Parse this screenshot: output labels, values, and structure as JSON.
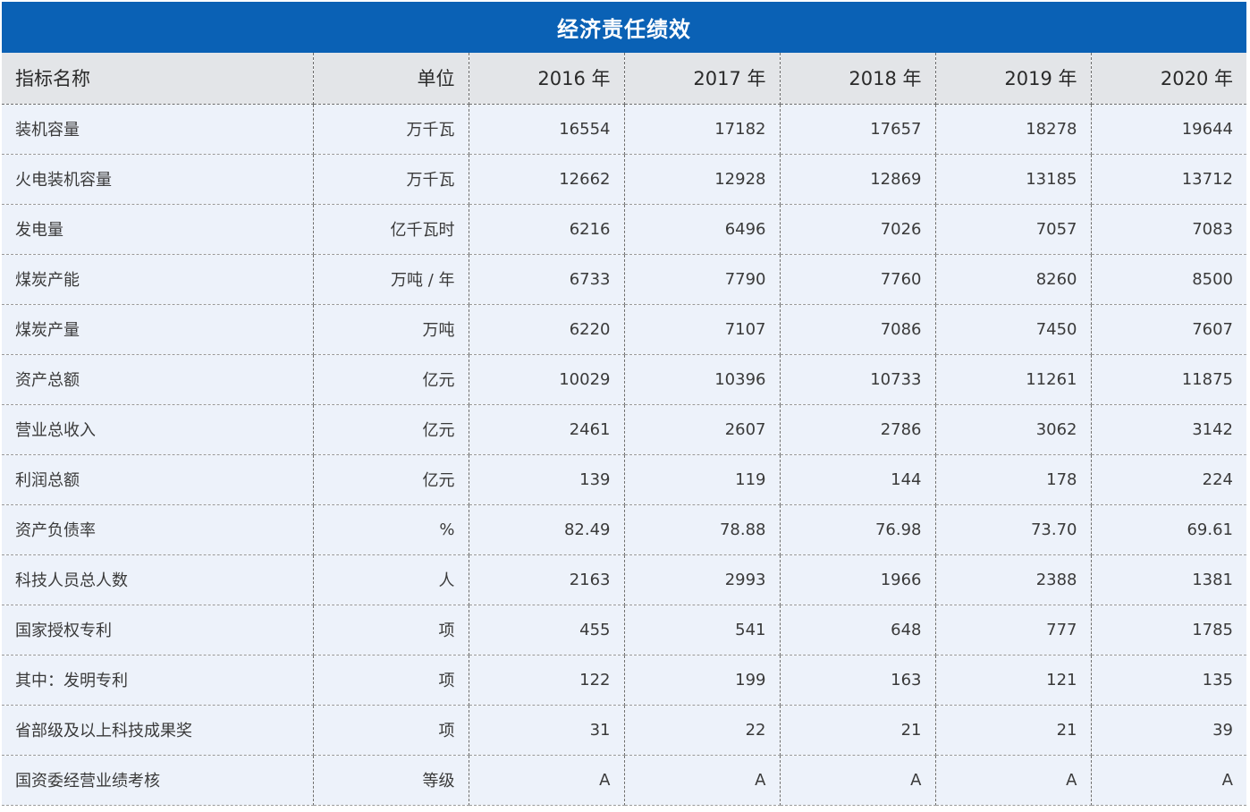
{
  "title": "经济责任绩效",
  "headers": {
    "name": "指标名称",
    "unit": "单位",
    "years": [
      "2016 年",
      "2017 年",
      "2018 年",
      "2019 年",
      "2020 年"
    ]
  },
  "rows": [
    {
      "name": "装机容量",
      "unit": "万千瓦",
      "values": [
        "16554",
        "17182",
        "17657",
        "18278",
        "19644"
      ]
    },
    {
      "name": "火电装机容量",
      "unit": "万千瓦",
      "values": [
        "12662",
        "12928",
        "12869",
        "13185",
        "13712"
      ]
    },
    {
      "name": "发电量",
      "unit": "亿千瓦时",
      "values": [
        "6216",
        "6496",
        "7026",
        "7057",
        "7083"
      ]
    },
    {
      "name": "煤炭产能",
      "unit": "万吨 / 年",
      "values": [
        "6733",
        "7790",
        "7760",
        "8260",
        "8500"
      ]
    },
    {
      "name": "煤炭产量",
      "unit": "万吨",
      "values": [
        "6220",
        "7107",
        "7086",
        "7450",
        "7607"
      ]
    },
    {
      "name": "资产总额",
      "unit": "亿元",
      "values": [
        "10029",
        "10396",
        "10733",
        "11261",
        "11875"
      ]
    },
    {
      "name": "营业总收入",
      "unit": "亿元",
      "values": [
        "2461",
        "2607",
        "2786",
        "3062",
        "3142"
      ]
    },
    {
      "name": "利润总额",
      "unit": "亿元",
      "values": [
        "139",
        "119",
        "144",
        "178",
        "224"
      ]
    },
    {
      "name": "资产负债率",
      "unit": "%",
      "values": [
        "82.49",
        "78.88",
        "76.98",
        "73.70",
        "69.61"
      ]
    },
    {
      "name": "科技人员总人数",
      "unit": "人",
      "values": [
        "2163",
        "2993",
        "1966",
        "2388",
        "1381"
      ]
    },
    {
      "name": "国家授权专利",
      "unit": "项",
      "values": [
        "455",
        "541",
        "648",
        "777",
        "1785"
      ]
    },
    {
      "name": "其中：发明专利",
      "unit": "项",
      "values": [
        "122",
        "199",
        "163",
        "121",
        "135"
      ]
    },
    {
      "name": "省部级及以上科技成果奖",
      "unit": "项",
      "values": [
        "31",
        "22",
        "21",
        "21",
        "39"
      ]
    },
    {
      "name": "国资委经营业绩考核",
      "unit": "等级",
      "values": [
        "A",
        "A",
        "A",
        "A",
        "A"
      ]
    }
  ],
  "colors": {
    "title_background": "#0a61b5",
    "header_background": "#e3e5e8",
    "row_background": "#edf2fa"
  }
}
